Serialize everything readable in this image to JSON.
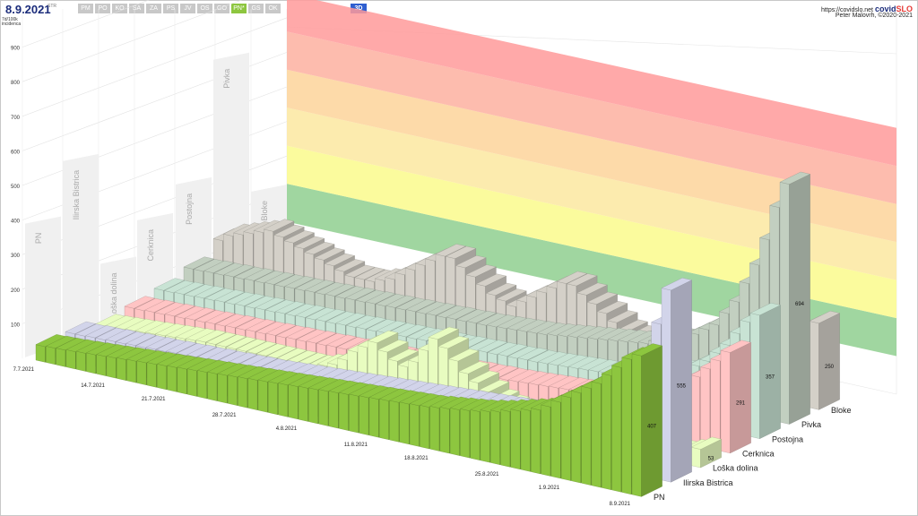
{
  "header": {
    "title": "8.9.2021",
    "title_sup": "STR",
    "tabs": [
      {
        "label": "PM",
        "active": false
      },
      {
        "label": "PO",
        "active": false
      },
      {
        "label": "KO",
        "active": false
      },
      {
        "label": "SA",
        "active": false
      },
      {
        "label": "ZA",
        "active": false
      },
      {
        "label": "PS",
        "active": false
      },
      {
        "label": "JV",
        "active": false
      },
      {
        "label": "OS",
        "active": false
      },
      {
        "label": "GO",
        "active": false
      },
      {
        "label": "PN*",
        "active": true
      },
      {
        "label": "GS",
        "active": false
      },
      {
        "label": "OK",
        "active": false
      }
    ],
    "view_button": "3D",
    "url": "https://covidslo.net",
    "brand_a": "covid",
    "brand_b": "SLO",
    "author": "Peter Malovrh, ©2020-2021",
    "y_unit_1": "7d/100k",
    "y_unit_2": "incidenca"
  },
  "chart_data": {
    "type": "bar",
    "y_ticks": [
      100,
      200,
      300,
      400,
      500,
      600,
      700,
      800,
      900
    ],
    "date_labels": [
      "7.7.2021",
      "14.7.2021",
      "21.7.2021",
      "28.7.2021",
      "4.8.2021",
      "11.8.2021",
      "18.8.2021",
      "25.8.2021",
      "1.9.2021",
      "8.9.2021"
    ],
    "zones": [
      {
        "from": 100,
        "to": 200,
        "color": "#8fcf8f"
      },
      {
        "from": 200,
        "to": 300,
        "color": "#fafa8c"
      },
      {
        "from": 300,
        "to": 400,
        "color": "#fce7a0"
      },
      {
        "from": 400,
        "to": 500,
        "color": "#fdd49a"
      },
      {
        "from": 500,
        "to": 600,
        "color": "#fdb0a0"
      },
      {
        "from": 600,
        "to": 700,
        "color": "#ff9a9a"
      }
    ],
    "series": [
      {
        "name": "PN",
        "color": "#8dc63f",
        "last": 407,
        "values": [
          45,
          47,
          48,
          50,
          52,
          54,
          56,
          58,
          60,
          62,
          64,
          66,
          68,
          70,
          72,
          74,
          76,
          78,
          80,
          82,
          84,
          86,
          88,
          90,
          92,
          94,
          96,
          98,
          100,
          102,
          104,
          106,
          108,
          110,
          112,
          114,
          116,
          118,
          120,
          124,
          128,
          132,
          136,
          140,
          146,
          152,
          160,
          168,
          176,
          184,
          200,
          220,
          240,
          260,
          280,
          300,
          330,
          360,
          390,
          407
        ]
      },
      {
        "name": "Ilirska Bistrica",
        "color": "#d2d4ea",
        "last": 555,
        "values": [
          40,
          40,
          42,
          42,
          44,
          44,
          46,
          46,
          48,
          48,
          50,
          50,
          52,
          52,
          54,
          54,
          56,
          56,
          58,
          58,
          60,
          62,
          64,
          66,
          68,
          70,
          72,
          74,
          76,
          78,
          80,
          82,
          84,
          86,
          88,
          90,
          92,
          94,
          96,
          98,
          100,
          102,
          104,
          106,
          108,
          110,
          112,
          116,
          120,
          124,
          128,
          132,
          136,
          140,
          150,
          160,
          200,
          300,
          450,
          555
        ]
      },
      {
        "name": "Loška dolina",
        "color": "#e8fcc0",
        "last": 53,
        "values": [
          20,
          22,
          24,
          26,
          28,
          30,
          32,
          34,
          36,
          38,
          40,
          40,
          40,
          40,
          40,
          40,
          40,
          40,
          40,
          40,
          40,
          40,
          50,
          60,
          80,
          110,
          130,
          150,
          130,
          110,
          100,
          120,
          160,
          200,
          180,
          150,
          120,
          100,
          80,
          60,
          50,
          40,
          30,
          30,
          30,
          40,
          50,
          60,
          50,
          40,
          30,
          30,
          40,
          60,
          80,
          60,
          40,
          30,
          40,
          53
        ]
      },
      {
        "name": "Cerknica",
        "color": "#ffc4c4",
        "last": 291,
        "values": [
          30,
          30,
          32,
          32,
          34,
          34,
          36,
          36,
          38,
          38,
          40,
          40,
          42,
          42,
          44,
          44,
          46,
          46,
          48,
          48,
          50,
          50,
          52,
          52,
          54,
          54,
          56,
          56,
          58,
          58,
          60,
          60,
          62,
          62,
          64,
          64,
          66,
          66,
          68,
          70,
          72,
          74,
          76,
          78,
          80,
          84,
          88,
          92,
          96,
          100,
          110,
          120,
          130,
          140,
          160,
          180,
          200,
          230,
          260,
          291
        ]
      },
      {
        "name": "Postojna",
        "color": "#c8e3d4",
        "last": 357,
        "values": [
          40,
          40,
          42,
          42,
          44,
          44,
          46,
          46,
          48,
          48,
          50,
          50,
          52,
          52,
          54,
          54,
          56,
          56,
          58,
          58,
          60,
          60,
          62,
          62,
          64,
          64,
          66,
          66,
          68,
          68,
          70,
          70,
          72,
          72,
          74,
          74,
          76,
          76,
          78,
          80,
          82,
          84,
          86,
          88,
          90,
          95,
          100,
          105,
          110,
          120,
          130,
          140,
          150,
          170,
          190,
          220,
          250,
          290,
          330,
          357
        ]
      },
      {
        "name": "Pivka",
        "color": "#c2cfc0",
        "last": 694,
        "values": [
          60,
          60,
          62,
          62,
          64,
          64,
          66,
          66,
          68,
          68,
          70,
          70,
          72,
          72,
          74,
          74,
          76,
          76,
          78,
          78,
          80,
          80,
          82,
          82,
          84,
          84,
          86,
          86,
          88,
          88,
          90,
          92,
          94,
          96,
          98,
          100,
          104,
          108,
          112,
          116,
          120,
          124,
          128,
          132,
          136,
          140,
          150,
          160,
          170,
          180,
          200,
          220,
          240,
          280,
          320,
          380,
          440,
          520,
          620,
          694
        ]
      },
      {
        "name": "Bloke",
        "color": "#d4d0c8",
        "last": 250,
        "values": [
          100,
          120,
          130,
          140,
          150,
          160,
          150,
          140,
          130,
          120,
          110,
          100,
          90,
          80,
          80,
          80,
          90,
          100,
          120,
          140,
          160,
          180,
          200,
          200,
          180,
          160,
          140,
          120,
          110,
          100,
          120,
          140,
          160,
          180,
          200,
          200,
          180,
          160,
          140,
          120,
          100,
          90,
          80,
          70,
          60,
          60,
          70,
          80,
          90,
          100,
          110,
          120,
          130,
          140,
          150,
          160,
          180,
          200,
          230,
          250
        ]
      }
    ]
  }
}
